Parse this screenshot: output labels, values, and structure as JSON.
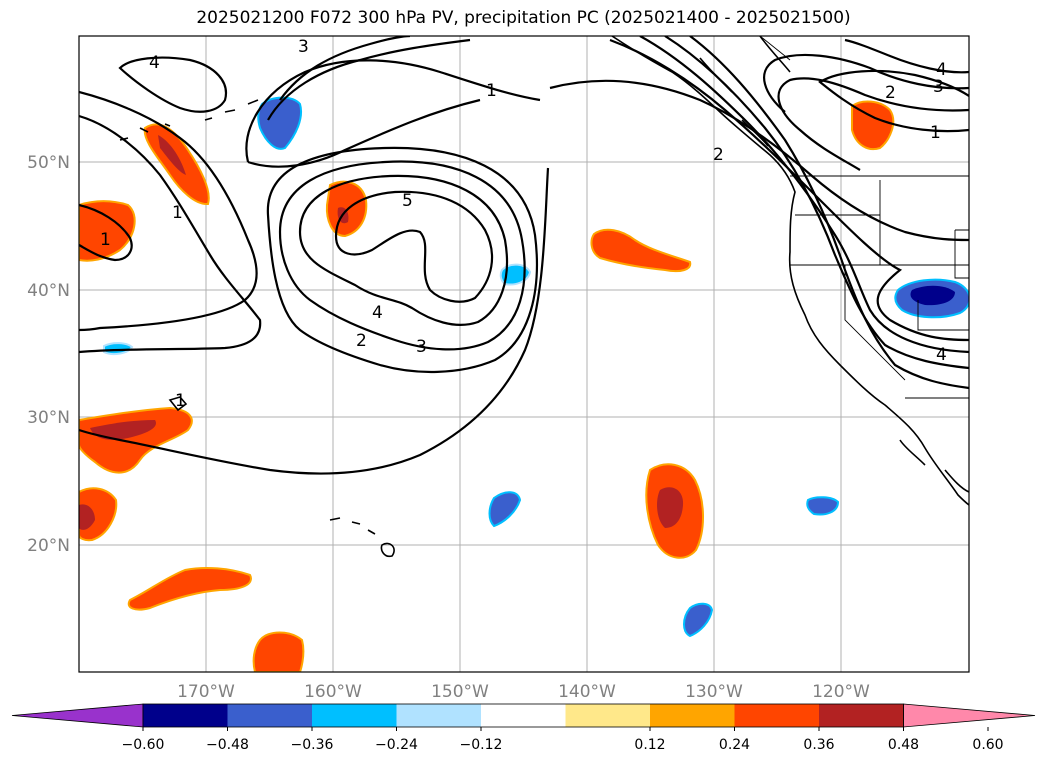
{
  "title": "2025021200 F072 300 hPa PV, precipitation PC (2025021400 - 2025021500)",
  "map": {
    "lon_labels": [
      "170°W",
      "160°W",
      "150°W",
      "140°W",
      "130°W",
      "120°W"
    ],
    "lat_labels": [
      "50°N",
      "40°N",
      "30°N",
      "20°N"
    ],
    "contour_labels": [
      "4",
      "3",
      "1",
      "1",
      "4",
      "2",
      "3",
      "1",
      "2",
      "5",
      "1",
      "1",
      "4",
      "2",
      "3",
      "4"
    ]
  },
  "colorbar": {
    "ticks": [
      "−0.60",
      "−0.48",
      "−0.36",
      "−0.24",
      "−0.12",
      "0.12",
      "0.24",
      "0.36",
      "0.48",
      "0.60"
    ],
    "colors": [
      "#9932cc",
      "#00008b",
      "#3a5fcd",
      "#00bfff",
      "#b0e2ff",
      "#ffffff",
      "#ffe88a",
      "#ffa500",
      "#ff4500",
      "#b22222",
      "#ff88aa"
    ]
  }
}
